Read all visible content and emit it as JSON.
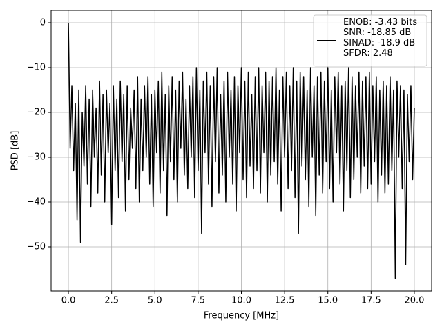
{
  "chart_data": {
    "type": "line",
    "xlabel": "Frequency [MHz]",
    "ylabel": "PSD [dB]",
    "xlim": [
      -1.0,
      21.0
    ],
    "ylim": [
      -59.85,
      2.77
    ],
    "xticks": [
      {
        "value": 0,
        "label": "0.0"
      },
      2.5,
      {
        "value": 5,
        "label": "5.0"
      },
      7.5,
      {
        "value": 10,
        "label": "10.0"
      },
      12.5,
      {
        "value": 15,
        "label": "15.0"
      },
      17.5,
      {
        "value": 20,
        "label": "20.0"
      }
    ],
    "yticks": [
      0,
      {
        "value": -10,
        "label": "−10"
      },
      {
        "value": -20,
        "label": "−20"
      },
      {
        "value": -30,
        "label": "−30"
      },
      {
        "value": -40,
        "label": "−40"
      },
      {
        "value": -50,
        "label": "−50"
      }
    ],
    "grid": true,
    "legend": "upper right",
    "x": [
      0,
      0.1,
      0.2,
      0.3,
      0.4,
      0.5,
      0.6,
      0.7,
      0.8,
      0.9,
      1,
      1.1,
      1.2,
      1.3,
      1.4,
      1.5,
      1.6,
      1.7,
      1.8,
      1.9,
      2,
      2.1,
      2.2,
      2.3,
      2.4,
      2.5,
      2.6,
      2.7,
      2.8,
      2.9,
      3,
      3.1,
      3.2,
      3.3,
      3.4,
      3.5,
      3.6,
      3.7,
      3.8,
      3.9,
      4,
      4.1,
      4.2,
      4.3,
      4.4,
      4.5,
      4.6,
      4.7,
      4.8,
      4.9,
      5,
      5.1,
      5.2,
      5.3,
      5.4,
      5.5,
      5.6,
      5.7,
      5.8,
      5.9,
      6,
      6.1,
      6.2,
      6.3,
      6.4,
      6.5,
      6.6,
      6.7,
      6.8,
      6.9,
      7,
      7.1,
      7.2,
      7.3,
      7.4,
      7.5,
      7.6,
      7.7,
      7.8,
      7.9,
      8,
      8.1,
      8.2,
      8.3,
      8.4,
      8.5,
      8.6,
      8.7,
      8.8,
      8.9,
      9,
      9.1,
      9.2,
      9.3,
      9.4,
      9.5,
      9.6,
      9.7,
      9.8,
      9.9,
      10,
      10.1,
      10.2,
      10.3,
      10.4,
      10.5,
      10.6,
      10.7,
      10.8,
      10.9,
      11,
      11.1,
      11.2,
      11.3,
      11.4,
      11.5,
      11.6,
      11.7,
      11.8,
      11.9,
      12,
      12.1,
      12.2,
      12.3,
      12.4,
      12.5,
      12.6,
      12.7,
      12.8,
      12.9,
      13,
      13.1,
      13.2,
      13.3,
      13.4,
      13.5,
      13.6,
      13.7,
      13.8,
      13.9,
      14,
      14.1,
      14.2,
      14.3,
      14.4,
      14.5,
      14.6,
      14.7,
      14.8,
      14.9,
      15,
      15.1,
      15.2,
      15.3,
      15.4,
      15.5,
      15.6,
      15.7,
      15.8,
      15.9,
      16,
      16.1,
      16.2,
      16.3,
      16.4,
      16.5,
      16.6,
      16.7,
      16.8,
      16.9,
      17,
      17.1,
      17.2,
      17.3,
      17.4,
      17.5,
      17.6,
      17.7,
      17.8,
      17.9,
      18,
      18.1,
      18.2,
      18.3,
      18.4,
      18.5,
      18.6,
      18.7,
      18.8,
      18.9,
      19,
      19.1,
      19.2,
      19.3,
      19.4,
      19.5,
      19.6,
      19.7,
      19.8,
      19.9,
      20
    ],
    "series": [
      {
        "name": "ENOB: -3.43 bits\nSNR: -18.85 dB\nSINAD: -18.9 dB\nSFDR: 2.48",
        "color": "#000000",
        "values": [
          0,
          -28,
          -14,
          -33,
          -18,
          -44,
          -15,
          -49,
          -20,
          -32,
          -14,
          -36,
          -17,
          -41,
          -15,
          -30,
          -19,
          -38,
          -13,
          -34,
          -16,
          -40,
          -15,
          -29,
          -18,
          -45,
          -14,
          -33,
          -17,
          -39,
          -13,
          -31,
          -16,
          -42,
          -14,
          -35,
          -19,
          -28,
          -15,
          -37,
          -12,
          -40,
          -17,
          -33,
          -14,
          -30,
          -12,
          -36,
          -16,
          -41,
          -15,
          -29,
          -13,
          -38,
          -11,
          -33,
          -16,
          -43,
          -14,
          -31,
          -12,
          -35,
          -15,
          -40,
          -13,
          -28,
          -11,
          -34,
          -17,
          -37,
          -14,
          -30,
          -12,
          -39,
          -10,
          -33,
          -15,
          -47,
          -13,
          -29,
          -11,
          -36,
          -14,
          -41,
          -12,
          -31,
          -10,
          -38,
          -16,
          -34,
          -13,
          -40,
          -11,
          -30,
          -15,
          -36,
          -12,
          -42,
          -14,
          -29,
          -10,
          -35,
          -13,
          -39,
          -11,
          -32,
          -16,
          -37,
          -12,
          -33,
          -10,
          -38,
          -14,
          -29,
          -11,
          -40,
          -13,
          -34,
          -12,
          -31,
          -10,
          -36,
          -15,
          -42,
          -12,
          -30,
          -11,
          -37,
          -14,
          -33,
          -10,
          -39,
          -13,
          -47,
          -11,
          -32,
          -12,
          -35,
          -15,
          -41,
          -10,
          -30,
          -14,
          -43,
          -12,
          -34,
          -11,
          -38,
          -13,
          -31,
          -10,
          -37,
          -15,
          -40,
          -12,
          -29,
          -11,
          -36,
          -14,
          -42,
          -13,
          -33,
          -10,
          -39,
          -12,
          -35,
          -14,
          -30,
          -11,
          -38,
          -13,
          -32,
          -12,
          -37,
          -11,
          -36,
          -14,
          -31,
          -12,
          -40,
          -15,
          -34,
          -13,
          -38,
          -14,
          -36,
          -12,
          -33,
          -15,
          -57,
          -13,
          -30,
          -14,
          -37,
          -15,
          -54,
          -16,
          -31,
          -14,
          -35,
          -19
        ]
      }
    ]
  }
}
